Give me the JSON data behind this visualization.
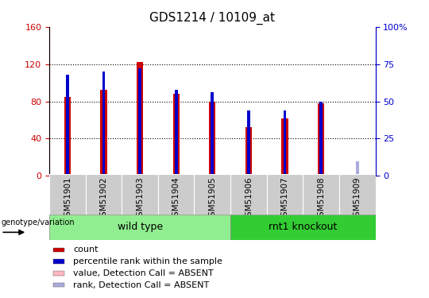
{
  "title": "GDS1214 / 10109_at",
  "samples": [
    "GSM51901",
    "GSM51902",
    "GSM51903",
    "GSM51904",
    "GSM51905",
    "GSM51906",
    "GSM51907",
    "GSM51908",
    "GSM51909"
  ],
  "count_values": [
    85,
    92,
    122,
    88,
    80,
    52,
    62,
    78,
    2
  ],
  "rank_values": [
    68,
    70,
    72,
    58,
    56,
    44,
    44,
    50,
    0
  ],
  "absent_count_values": [
    0,
    0,
    0,
    0,
    0,
    0,
    0,
    0,
    2
  ],
  "absent_rank_values": [
    0,
    0,
    0,
    0,
    0,
    0,
    0,
    0,
    10
  ],
  "ylim_left": [
    0,
    160
  ],
  "ylim_right": [
    0,
    100
  ],
  "yticks_left": [
    0,
    40,
    80,
    120,
    160
  ],
  "yticks_right": [
    0,
    25,
    50,
    75,
    100
  ],
  "ytick_labels_left": [
    "0",
    "40",
    "80",
    "120",
    "160"
  ],
  "ytick_labels_right": [
    "0",
    "25",
    "50",
    "75",
    "100%"
  ],
  "wt_count": 5,
  "ko_count": 4,
  "wt_label": "wild type",
  "ko_label": "rnt1 knockout",
  "wt_color": "#90EE90",
  "ko_color": "#32CD32",
  "sample_box_color": "#CCCCCC",
  "count_color": "#CC0000",
  "rank_color": "#0000CC",
  "absent_count_color": "#FFB6C1",
  "absent_rank_color": "#AAAADD",
  "bg_color": "#FFFFFF",
  "left_axis_color": "#CC0000",
  "right_axis_color": "#0000CC",
  "group_label": "genotype/variation",
  "legend_items": [
    {
      "label": "count",
      "color": "#CC0000"
    },
    {
      "label": "percentile rank within the sample",
      "color": "#0000CC"
    },
    {
      "label": "value, Detection Call = ABSENT",
      "color": "#FFB6C1"
    },
    {
      "label": "rank, Detection Call = ABSENT",
      "color": "#AAAADD"
    }
  ],
  "count_bar_width": 0.18,
  "rank_bar_width": 0.08
}
